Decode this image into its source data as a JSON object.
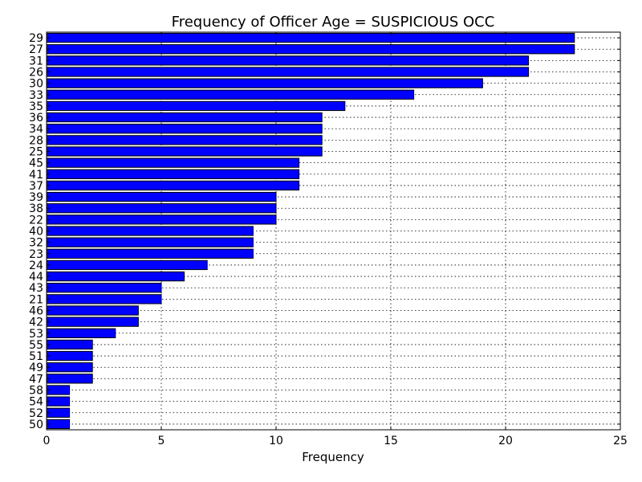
{
  "chart_data": {
    "type": "bar",
    "orientation": "horizontal",
    "title": "Frequency of Officer Age = SUSPICIOUS OCC",
    "xlabel": "Frequency",
    "ylabel": "",
    "xlim": [
      0,
      25
    ],
    "x_ticks": [
      0,
      5,
      10,
      15,
      20,
      25
    ],
    "grid": true,
    "bar_color": "#0000ff",
    "categories": [
      "29",
      "27",
      "31",
      "26",
      "30",
      "33",
      "35",
      "36",
      "34",
      "28",
      "25",
      "45",
      "41",
      "37",
      "39",
      "38",
      "22",
      "40",
      "32",
      "23",
      "24",
      "44",
      "43",
      "21",
      "46",
      "42",
      "53",
      "55",
      "51",
      "49",
      "47",
      "58",
      "54",
      "52",
      "50"
    ],
    "values": [
      23,
      23,
      21,
      21,
      19,
      16,
      13,
      12,
      12,
      12,
      12,
      11,
      11,
      11,
      10,
      10,
      10,
      9,
      9,
      9,
      7,
      6,
      5,
      5,
      4,
      4,
      3,
      2,
      2,
      2,
      2,
      1,
      1,
      1,
      1
    ]
  }
}
